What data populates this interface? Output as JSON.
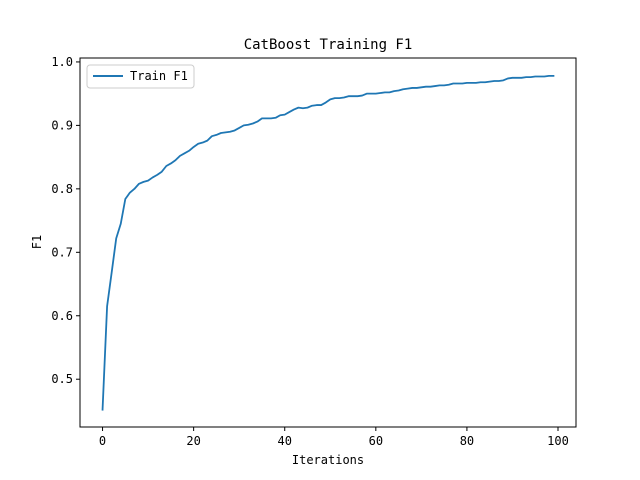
{
  "chart_data": {
    "type": "line",
    "title": "CatBoost Training F1",
    "xlabel": "Iterations",
    "ylabel": "F1",
    "xlim": [
      -4.95,
      103.95
    ],
    "ylim": [
      0.4247,
      1.0062
    ],
    "xticks": [
      0,
      20,
      40,
      60,
      80,
      100
    ],
    "yticks": [
      0.5,
      0.6,
      0.7,
      0.8,
      0.9,
      1.0
    ],
    "xtick_labels": [
      "0",
      "20",
      "40",
      "60",
      "80",
      "100"
    ],
    "ytick_labels": [
      "0.5",
      "0.6",
      "0.7",
      "0.8",
      "0.9",
      "1.0"
    ],
    "grid": false,
    "legend": {
      "placement": "upper-left",
      "entries": [
        "Train F1"
      ]
    },
    "series": [
      {
        "name": "Train F1",
        "color": "#1f77b4",
        "x": [
          0,
          1,
          2,
          3,
          4,
          5,
          6,
          7,
          8,
          9,
          10,
          11,
          12,
          13,
          14,
          15,
          16,
          17,
          18,
          19,
          20,
          21,
          22,
          23,
          24,
          25,
          26,
          27,
          28,
          29,
          30,
          31,
          32,
          33,
          34,
          35,
          36,
          37,
          38,
          39,
          40,
          41,
          42,
          43,
          44,
          45,
          46,
          47,
          48,
          49,
          50,
          51,
          52,
          53,
          54,
          55,
          56,
          57,
          58,
          59,
          60,
          61,
          62,
          63,
          64,
          65,
          66,
          67,
          68,
          69,
          70,
          71,
          72,
          73,
          74,
          75,
          76,
          77,
          78,
          79,
          80,
          81,
          82,
          83,
          84,
          85,
          86,
          87,
          88,
          89,
          90,
          91,
          92,
          93,
          94,
          95,
          96,
          97,
          98,
          99
        ],
        "values": [
          0.452,
          0.615,
          0.668,
          0.722,
          0.745,
          0.784,
          0.794,
          0.8,
          0.808,
          0.811,
          0.813,
          0.818,
          0.822,
          0.827,
          0.836,
          0.84,
          0.845,
          0.852,
          0.856,
          0.86,
          0.866,
          0.871,
          0.873,
          0.876,
          0.883,
          0.885,
          0.888,
          0.889,
          0.89,
          0.892,
          0.896,
          0.9,
          0.901,
          0.903,
          0.906,
          0.911,
          0.911,
          0.911,
          0.912,
          0.916,
          0.917,
          0.921,
          0.925,
          0.928,
          0.927,
          0.928,
          0.931,
          0.932,
          0.932,
          0.936,
          0.941,
          0.943,
          0.943,
          0.944,
          0.946,
          0.946,
          0.946,
          0.947,
          0.95,
          0.95,
          0.95,
          0.951,
          0.952,
          0.952,
          0.954,
          0.955,
          0.957,
          0.958,
          0.959,
          0.959,
          0.96,
          0.961,
          0.961,
          0.962,
          0.963,
          0.963,
          0.964,
          0.966,
          0.966,
          0.966,
          0.967,
          0.967,
          0.967,
          0.968,
          0.968,
          0.969,
          0.97,
          0.97,
          0.971,
          0.974,
          0.975,
          0.975,
          0.975,
          0.976,
          0.976,
          0.977,
          0.977,
          0.977,
          0.978,
          0.978
        ]
      }
    ]
  }
}
